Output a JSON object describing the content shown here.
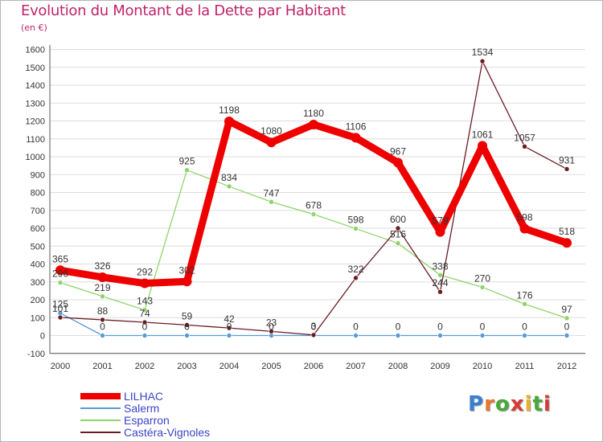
{
  "title": "Evolution du Montant de la Dette par Habitant",
  "unit": "(en €)",
  "brand": {
    "name": "Proxiti",
    "letters": [
      "P",
      "r",
      "o",
      "x",
      "i",
      "t",
      "i"
    ],
    "colors": [
      "#3a7fd0",
      "#e8772a",
      "#4aa83a",
      "#d83a3a",
      "#e8b02a",
      "#4aa83a",
      "#d83a3a"
    ]
  },
  "chart_data": {
    "type": "line",
    "categories": [
      "2000",
      "2001",
      "2002",
      "2003",
      "2004",
      "2005",
      "2006",
      "2007",
      "2008",
      "2009",
      "2010",
      "2011",
      "2012"
    ],
    "ylim": [
      -100,
      1600
    ],
    "yticks": [
      -100,
      0,
      100,
      200,
      300,
      400,
      500,
      600,
      700,
      800,
      900,
      1000,
      1100,
      1200,
      1300,
      1400,
      1500,
      1600
    ],
    "grid": "horizontal",
    "legend_position": "bottom-left",
    "series": [
      {
        "name": "LILHAC",
        "color": "#ee0000",
        "values": [
          365,
          326,
          292,
          302,
          1198,
          1080,
          1180,
          1106,
          967,
          579,
          1061,
          598,
          518
        ]
      },
      {
        "name": "Salerm",
        "color": "#5a9ad6",
        "values": [
          125,
          0,
          0,
          0,
          0,
          0,
          0,
          0,
          0,
          0,
          0,
          0,
          0
        ]
      },
      {
        "name": "Esparron",
        "color": "#8fd46a",
        "values": [
          296,
          219,
          143,
          925,
          834,
          747,
          678,
          598,
          516,
          338,
          270,
          176,
          97
        ]
      },
      {
        "name": "Castéra-Vignoles",
        "color": "#6a1c24",
        "values": [
          101,
          88,
          74,
          59,
          42,
          23,
          3,
          322,
          600,
          244,
          1534,
          1057,
          931
        ]
      }
    ]
  }
}
